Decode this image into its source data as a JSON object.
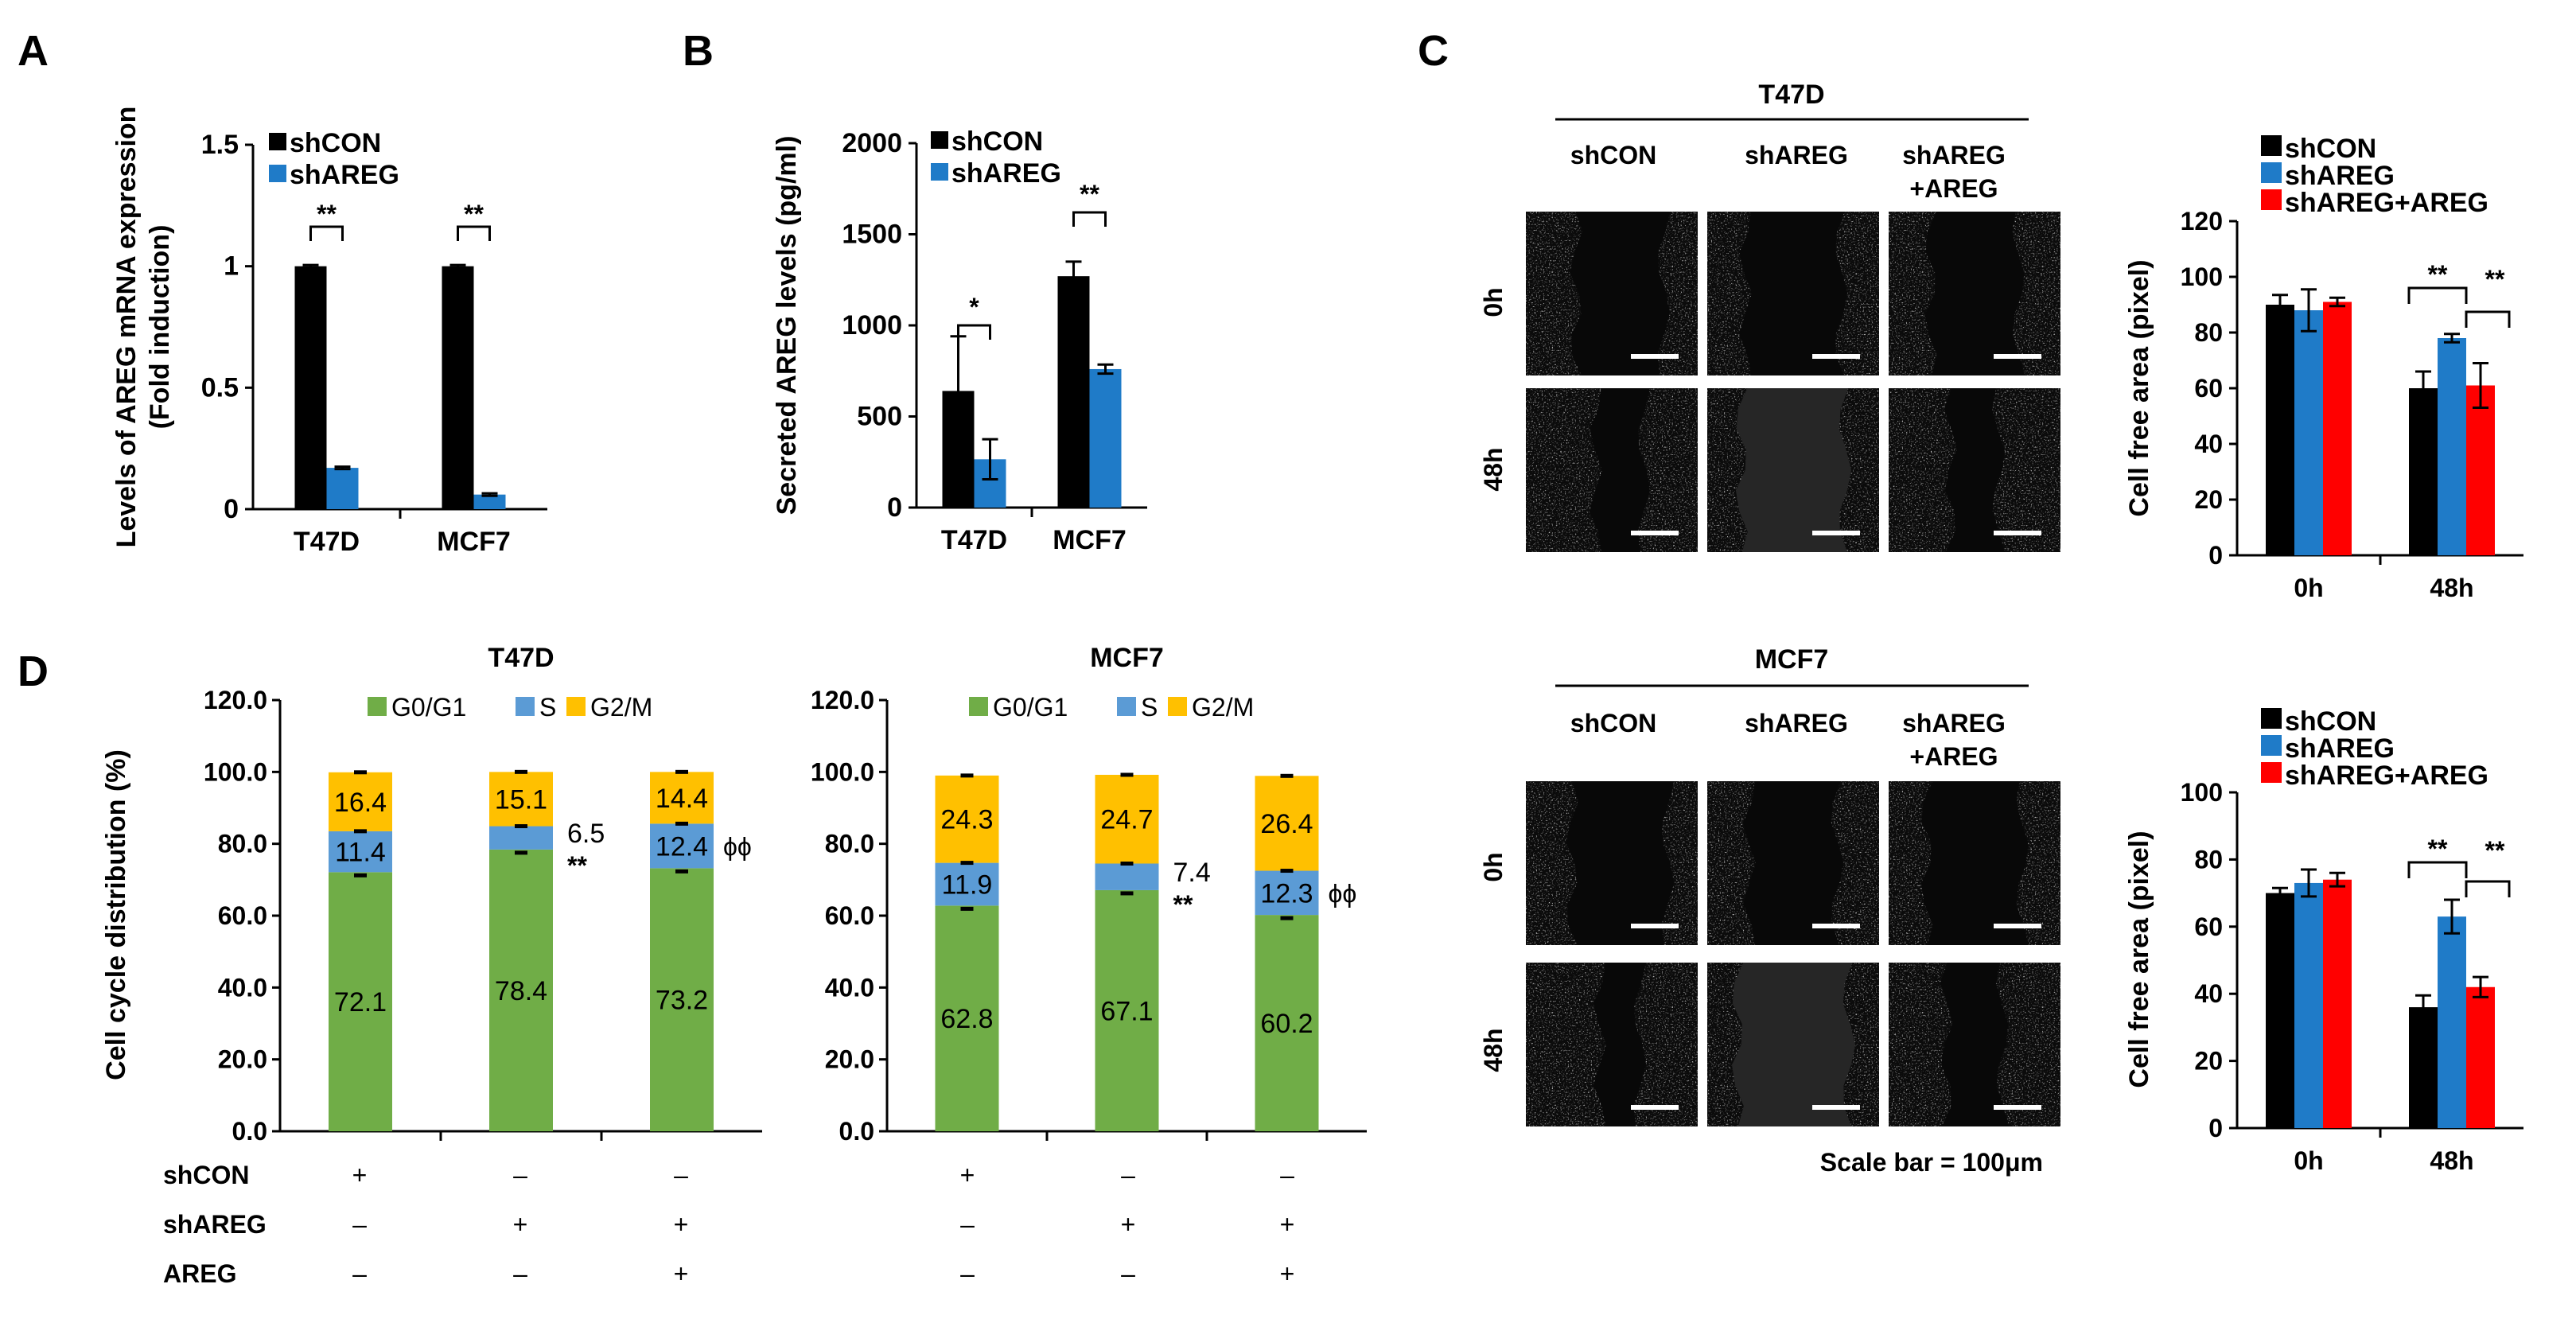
{
  "colors": {
    "black": "#000000",
    "blue": "#1f7bc8",
    "red": "#ff0000",
    "green": "#70ad47",
    "s_blue": "#5b9bd5",
    "yellow": "#ffc000"
  },
  "panel_letters": {
    "a": "A",
    "b": "B",
    "c": "C",
    "d": "D"
  },
  "chart_data": [
    {
      "id": "A",
      "type": "bar",
      "categories": [
        "T47D",
        "MCF7"
      ],
      "series": [
        {
          "name": "shCON",
          "values": [
            1.0,
            1.0
          ],
          "errors": [
            0.005,
            0.005
          ]
        },
        {
          "name": "shAREG",
          "values": [
            0.17,
            0.06
          ],
          "errors": [
            0.005,
            0.005
          ]
        }
      ],
      "ylabel1": "Levels of AREG mRNA expression",
      "ylabel2": "(Fold induction)",
      "ylim": [
        0,
        1.5
      ],
      "yticks": [
        "0",
        "0.5",
        "1",
        "1.5"
      ],
      "significance": [
        "**",
        "**"
      ]
    },
    {
      "id": "B",
      "type": "bar",
      "categories": [
        "T47D",
        "MCF7"
      ],
      "series": [
        {
          "name": "shCON",
          "values": [
            640,
            1270
          ],
          "errors": [
            300,
            80
          ]
        },
        {
          "name": "shAREG",
          "values": [
            265,
            760
          ],
          "errors": [
            110,
            25
          ]
        }
      ],
      "ylabel": "Secreted AREG levels (pg/ml)",
      "ylim": [
        0,
        2000
      ],
      "yticks": [
        "0",
        "500",
        "1000",
        "1500",
        "2000"
      ],
      "significance": [
        "*",
        "**"
      ]
    },
    {
      "id": "C-T47D",
      "type": "bar",
      "categories": [
        "0h",
        "48h"
      ],
      "series": [
        {
          "name": "shCON",
          "values": [
            90,
            60
          ],
          "errors": [
            3.5,
            6
          ]
        },
        {
          "name": "shAREG",
          "values": [
            88,
            78
          ],
          "errors": [
            7.5,
            1.5
          ]
        },
        {
          "name": "shAREG+AREG",
          "values": [
            91,
            61
          ],
          "errors": [
            1.5,
            8
          ]
        }
      ],
      "ylabel": "Cell free area (pixel)",
      "ylim": [
        0,
        120
      ],
      "yticks": [
        "0",
        "20",
        "40",
        "60",
        "80",
        "100",
        "120"
      ],
      "significance": [
        "**",
        "**"
      ]
    },
    {
      "id": "C-MCF7",
      "type": "bar",
      "categories": [
        "0h",
        "48h"
      ],
      "series": [
        {
          "name": "shCON",
          "values": [
            70,
            36
          ],
          "errors": [
            1.5,
            3.5
          ]
        },
        {
          "name": "shAREG",
          "values": [
            73,
            63
          ],
          "errors": [
            4,
            5
          ]
        },
        {
          "name": "shAREG+AREG",
          "values": [
            74,
            42
          ],
          "errors": [
            2,
            3
          ]
        }
      ],
      "ylabel": "Cell free area (pixel)",
      "ylim": [
        0,
        100
      ],
      "yticks": [
        "0",
        "20",
        "40",
        "60",
        "80",
        "100"
      ],
      "significance": [
        "**",
        "**"
      ]
    },
    {
      "id": "D-T47D",
      "type": "bar",
      "stacked": true,
      "title": "T47D",
      "legend": [
        "G0/G1",
        "S",
        "G2/M"
      ],
      "g1": [
        72.1,
        78.4,
        73.2
      ],
      "s": [
        11.4,
        6.5,
        12.4
      ],
      "g2m": [
        16.4,
        15.1,
        14.4
      ],
      "g1_labels": [
        "72.1",
        "78.4",
        "73.2"
      ],
      "s_labels": [
        "11.4",
        "6.5",
        "12.4"
      ],
      "g2m_labels": [
        "16.4",
        "15.1",
        "14.4"
      ],
      "annotations": [
        "**",
        "ϕϕ"
      ],
      "ylabel": "Cell cycle distribution (%)",
      "ylim": [
        0,
        120
      ],
      "yticks": [
        "0.0",
        "20.0",
        "40.0",
        "60.0",
        "80.0",
        "100.0",
        "120.0"
      ]
    },
    {
      "id": "D-MCF7",
      "type": "bar",
      "stacked": true,
      "title": "MCF7",
      "legend": [
        "G0/G1",
        "S",
        "G2/M"
      ],
      "g1": [
        62.8,
        67.1,
        60.2
      ],
      "s": [
        11.9,
        7.4,
        12.3
      ],
      "g2m": [
        24.3,
        24.7,
        26.4
      ],
      "g1_labels": [
        "62.8",
        "67.1",
        "60.2"
      ],
      "s_labels": [
        "11.9",
        "7.4",
        "12.3"
      ],
      "g2m_labels": [
        "24.3",
        "24.7",
        "26.4"
      ],
      "annotations": [
        "**",
        "ϕϕ"
      ],
      "ylim": [
        0,
        120
      ],
      "yticks": [
        "0.0",
        "20.0",
        "40.0",
        "60.0",
        "80.0",
        "100.0",
        "120.0"
      ]
    }
  ],
  "treatments": {
    "row_labels": [
      "shCON",
      "shAREG",
      "AREG"
    ],
    "rows": [
      [
        "+",
        "–",
        "–"
      ],
      [
        "–",
        "+",
        "+"
      ],
      [
        "–",
        "–",
        "+"
      ]
    ]
  },
  "images": {
    "t47d_title": "T47D",
    "mcf7_title": "MCF7",
    "col1": "shCON",
    "col2": "shAREG",
    "col3a": "shAREG",
    "col3b": "+AREG",
    "row1": "0h",
    "row2": "48h",
    "scale": "Scale bar = 100μm"
  }
}
